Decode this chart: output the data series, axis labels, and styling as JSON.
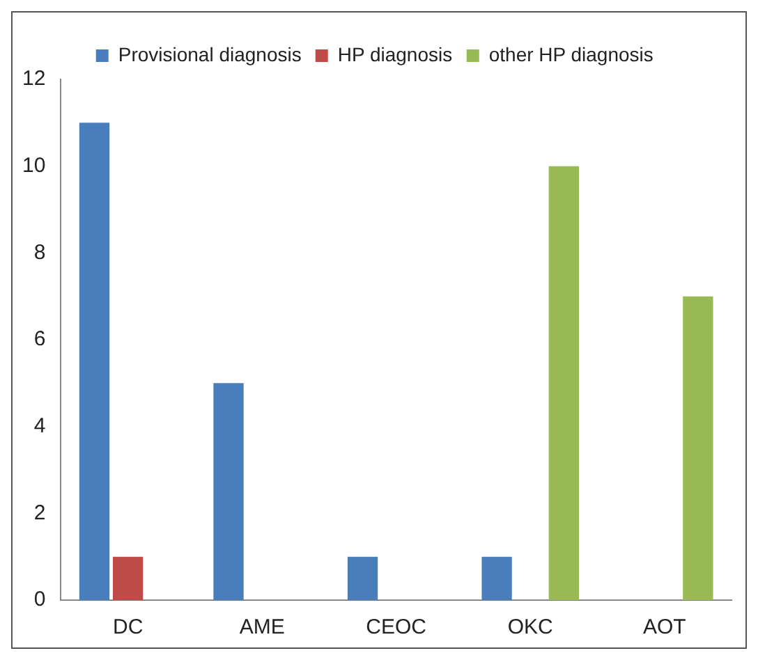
{
  "chart_data": {
    "type": "bar",
    "categories": [
      "DC",
      "AME",
      "CEOC",
      "OKC",
      "AOT"
    ],
    "series": [
      {
        "name": "Provisional diagnosis",
        "color": "#4a7ebb",
        "values": [
          11,
          5,
          1,
          1,
          0
        ]
      },
      {
        "name": "HP diagnosis",
        "color": "#be4b48",
        "values": [
          1,
          0,
          0,
          0,
          0
        ]
      },
      {
        "name": "other HP diagnosis",
        "color": "#98b954",
        "values": [
          0,
          0,
          0,
          10,
          7
        ]
      }
    ],
    "ylim": [
      0,
      12
    ],
    "yticks": [
      0,
      2,
      4,
      6,
      8,
      10,
      12
    ],
    "grid": false,
    "legend": "top"
  }
}
